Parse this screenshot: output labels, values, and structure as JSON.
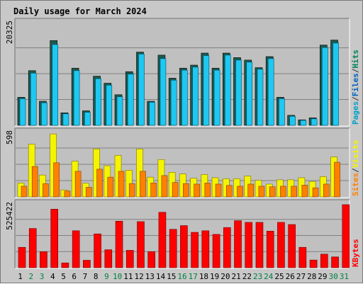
{
  "chart_data": {
    "type": "bar",
    "title": "Daily usage for March 2024",
    "colors": {
      "pages": "#00805c",
      "files": "#00a0c8",
      "hits": "#00a0c8",
      "hits_fill": "#1ec8f0",
      "hits_dark": "#1c5a50",
      "visits": "#f4f400",
      "sites": "#ff8000",
      "kbytes": "#ff0000",
      "weekday_label": "#000000",
      "weekend_label": "#008040",
      "title": "#0000c0",
      "panel_bg": "#c0c0c0",
      "grid": "#808080"
    },
    "categories": [
      "1",
      "2",
      "3",
      "4",
      "5",
      "6",
      "7",
      "8",
      "9",
      "10",
      "11",
      "12",
      "13",
      "14",
      "15",
      "16",
      "17",
      "18",
      "19",
      "20",
      "21",
      "22",
      "23",
      "24",
      "25",
      "26",
      "27",
      "28",
      "29",
      "30",
      "31"
    ],
    "weekend_days": [
      "2",
      "3",
      "9",
      "10",
      "16",
      "17",
      "23",
      "24",
      "30",
      "31"
    ],
    "panels": [
      {
        "name": "hits_files_pages",
        "max_label": "20325",
        "max": 20325,
        "legend": [
          {
            "text": "Pages",
            "color": "#00a0c8"
          },
          {
            "text": "/",
            "color": "#303030"
          },
          {
            "text": "Files",
            "color": "#0060c0"
          },
          {
            "text": "/",
            "color": "#303030"
          },
          {
            "text": "Hits",
            "color": "#00805c"
          }
        ],
        "series": [
          {
            "name": "Hits",
            "values": [
              5600,
              10900,
              4800,
              16900,
              2500,
              11400,
              2900,
              9800,
              8400,
              6100,
              10700,
              14600,
              4800,
              14000,
              9400,
              11400,
              12000,
              14400,
              11400,
              14400,
              13500,
              13000,
              11500,
              13700,
              5600,
              2000,
              1100,
              1500,
              16000,
              17000,
              0
            ]
          },
          {
            "name": "Files",
            "values": [
              5300,
              10400,
              4500,
              16100,
              2300,
              10900,
              2600,
              9300,
              8000,
              5700,
              10200,
              14200,
              4600,
              13300,
              9000,
              11000,
              11600,
              13900,
              11000,
              14000,
              13000,
              12600,
              11200,
              13300,
              5300,
              1800,
              1000,
              1300,
              15500,
              16400,
              0
            ]
          }
        ]
      },
      {
        "name": "visits_sites",
        "max_label": "598",
        "max": 598,
        "legend": [
          {
            "text": "Sites",
            "color": "#ff8000"
          },
          {
            "text": "/",
            "color": "#303030"
          },
          {
            "text": "Visits",
            "color": "#f4f400"
          }
        ],
        "series": [
          {
            "name": "Visits",
            "values": [
              130,
              495,
              205,
              590,
              65,
              335,
              128,
              450,
              292,
              390,
              250,
              450,
              185,
              350,
              230,
              215,
              175,
              210,
              180,
              170,
              170,
              195,
              155,
              120,
              160,
              160,
              180,
              145,
              190,
              375,
              0
            ]
          },
          {
            "name": "Sites",
            "values": [
              100,
              285,
              125,
              320,
              55,
              240,
              90,
              260,
              185,
              240,
              125,
              240,
              130,
              200,
              135,
              125,
              120,
              130,
              120,
              108,
              100,
              120,
              100,
              95,
              100,
              100,
              110,
              85,
              120,
              325,
              0
            ]
          }
        ]
      },
      {
        "name": "kbytes",
        "max_label": "525422",
        "max": 525422,
        "legend": [
          {
            "text": "KBytes",
            "color": "#ff0000"
          }
        ],
        "series": [
          {
            "name": "KBytes",
            "values": [
              170000,
              327000,
              134000,
              488000,
              40000,
              308000,
              62000,
              282000,
              150000,
              388000,
              145000,
              384000,
              134000,
              462000,
              320000,
              351000,
              295000,
              308000,
              278000,
              335000,
              392000,
              378000,
              378000,
              305000,
              378000,
              360000,
              170000,
              64000,
              113000,
              90000,
              525422
            ]
          }
        ]
      }
    ]
  }
}
